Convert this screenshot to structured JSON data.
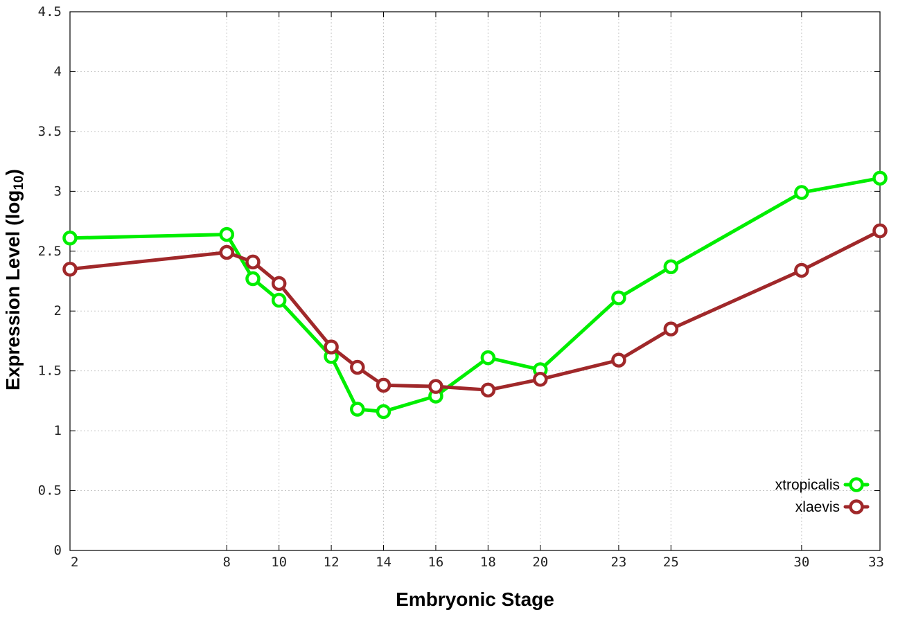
{
  "chart_data": {
    "type": "line",
    "title": "",
    "xlabel": "Embryonic Stage",
    "ylabel": "Expression Level (log",
    "ylabel_subscript": "10",
    "ylabel_suffix": ")",
    "x": [
      2,
      8,
      9,
      10,
      12,
      13,
      14,
      16,
      18,
      20,
      23,
      25,
      30,
      33
    ],
    "x_ticks": [
      2,
      8,
      10,
      12,
      14,
      16,
      18,
      20,
      23,
      25,
      30,
      33
    ],
    "y_ticks": [
      0,
      0.5,
      1,
      1.5,
      2,
      2.5,
      3,
      3.5,
      4,
      4.5
    ],
    "y_tick_labels": [
      "0",
      "0.5",
      "1",
      "1.5",
      "2",
      "2.5",
      "3",
      "3.5",
      "4",
      "4.5"
    ],
    "xlim": [
      2,
      33
    ],
    "ylim": [
      0,
      4.5
    ],
    "grid": true,
    "legend_position": "bottom-right",
    "series": [
      {
        "name": "xtropicalis",
        "color": "#00ee00",
        "values": [
          2.61,
          2.64,
          2.27,
          2.09,
          1.62,
          1.18,
          1.16,
          1.29,
          1.61,
          1.51,
          2.11,
          2.37,
          2.99,
          3.11
        ]
      },
      {
        "name": "xlaevis",
        "color": "#a0282a",
        "values": [
          2.35,
          2.49,
          2.41,
          2.23,
          1.7,
          1.53,
          1.38,
          1.37,
          1.34,
          1.43,
          1.59,
          1.85,
          2.34,
          2.67
        ]
      }
    ]
  }
}
